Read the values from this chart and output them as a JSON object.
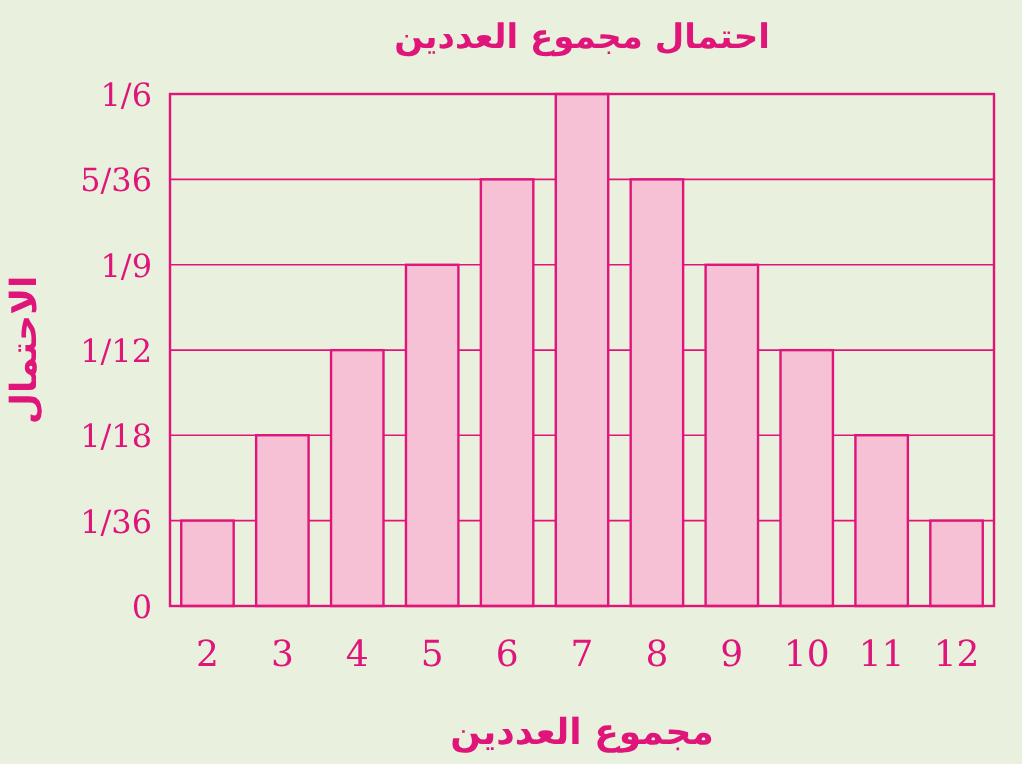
{
  "chart_data": {
    "type": "bar",
    "title": "احتمال مجموع العددين",
    "xlabel": "مجموع العددين",
    "ylabel": "الاحتمال",
    "categories": [
      "2",
      "3",
      "4",
      "5",
      "6",
      "7",
      "8",
      "9",
      "10",
      "11",
      "12"
    ],
    "values": [
      0.0278,
      0.0556,
      0.0833,
      0.1111,
      0.1389,
      0.1667,
      0.1389,
      0.1111,
      0.0833,
      0.0556,
      0.0278
    ],
    "color": "#f7c1d5",
    "ylim": [
      0,
      0.1667
    ],
    "yticks": [
      0,
      {
        "value": 0.0278,
        "label": "1/36"
      },
      {
        "value": 0.0556,
        "label": "1/18"
      },
      {
        "value": 0.0833,
        "label": "1/12"
      },
      {
        "value": 0.1111,
        "label": "1/9"
      },
      {
        "value": 0.1389,
        "label": "5/36"
      },
      {
        "value": 0.1667,
        "label": "1/6"
      }
    ],
    "grid": "y"
  }
}
